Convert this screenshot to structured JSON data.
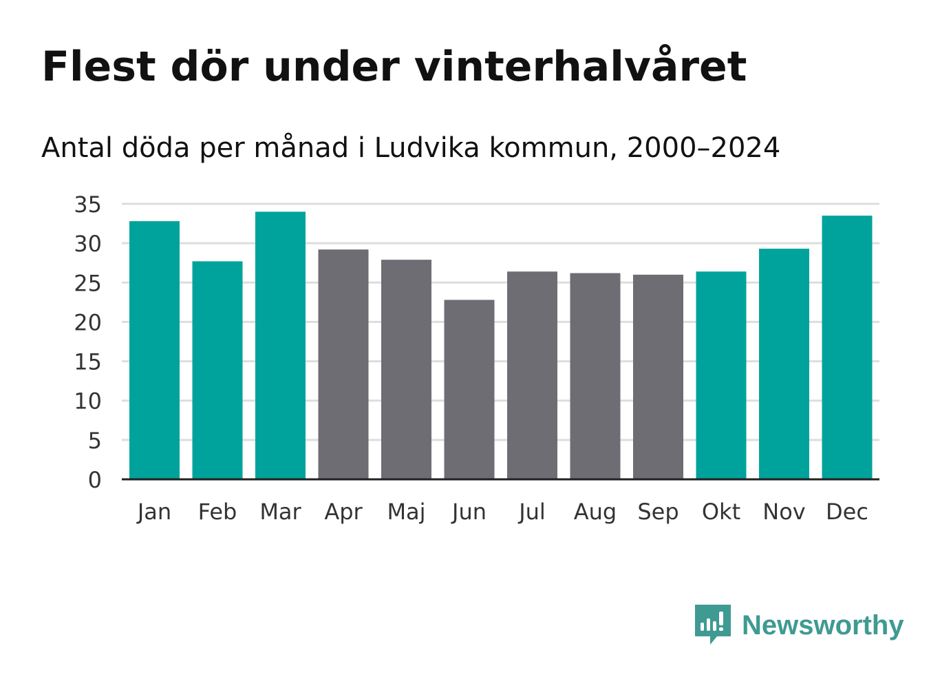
{
  "title": "Flest dör under vinterhalvåret",
  "subtitle": "Antal döda per månad i Ludvika kommun, 2000–2024",
  "colors": {
    "highlight": "#00a39b",
    "normal": "#6e6d73",
    "grid": "#dddddd",
    "axis": "#222222",
    "brand": "#3f9a92"
  },
  "chart_data": {
    "type": "bar",
    "title": "Flest dör under vinterhalvåret",
    "subtitle": "Antal döda per månad i Ludvika kommun, 2000–2024",
    "xlabel": "",
    "ylabel": "",
    "categories": [
      "Jan",
      "Feb",
      "Mar",
      "Apr",
      "Maj",
      "Jun",
      "Jul",
      "Aug",
      "Sep",
      "Okt",
      "Nov",
      "Dec"
    ],
    "values": [
      32.8,
      27.7,
      34.0,
      29.2,
      27.9,
      22.8,
      26.4,
      26.2,
      26.0,
      26.4,
      29.3,
      33.5
    ],
    "highlight": [
      true,
      true,
      true,
      false,
      false,
      false,
      false,
      false,
      false,
      true,
      true,
      true
    ],
    "ylim": [
      0,
      35
    ],
    "yticks": [
      0,
      5,
      10,
      15,
      20,
      25,
      30,
      35
    ],
    "grid": true
  },
  "brand": {
    "name": "Newsworthy",
    "icon": "newsworthy-logo-icon"
  }
}
